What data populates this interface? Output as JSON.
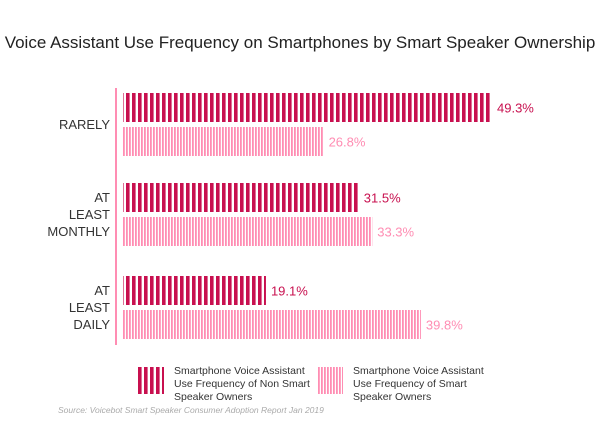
{
  "chart_data": {
    "type": "bar",
    "orientation": "horizontal",
    "title": "Voice Assistant Use Frequency on Smartphones by Smart Speaker Ownership",
    "categories": [
      "RARELY",
      "AT LEAST MONTHLY",
      "AT LEAST DAILY"
    ],
    "category_lines": [
      [
        "RARELY"
      ],
      [
        "AT",
        "LEAST",
        "MONTHLY"
      ],
      [
        "AT",
        "LEAST",
        "DAILY"
      ]
    ],
    "series": [
      {
        "name": "Smartphone Voice Assistant Use Frequency of Non Smart Speaker Owners",
        "values": [
          49.3,
          31.5,
          19.1
        ],
        "labels": [
          "49.3%",
          "31.5%",
          "19.1%"
        ],
        "color": "#c8104f"
      },
      {
        "name": "Smartphone Voice Assistant Use Frequency of Smart Speaker Owners",
        "values": [
          26.8,
          33.3,
          39.8
        ],
        "labels": [
          "26.8%",
          "33.3%",
          "39.8%"
        ],
        "color": "#ff8db3"
      }
    ],
    "legend": {
      "placement": "bottom",
      "items": [
        [
          "Smartphone Voice Assistant",
          "Use Frequency of Non Smart",
          "Speaker Owners"
        ],
        [
          "Smartphone Voice Assistant",
          "Use Frequency of Smart",
          "Speaker Owners"
        ]
      ]
    },
    "grid": false,
    "source": "Source: Voicebot Smart Speaker Consumer Adoption Report Jan 2019"
  }
}
